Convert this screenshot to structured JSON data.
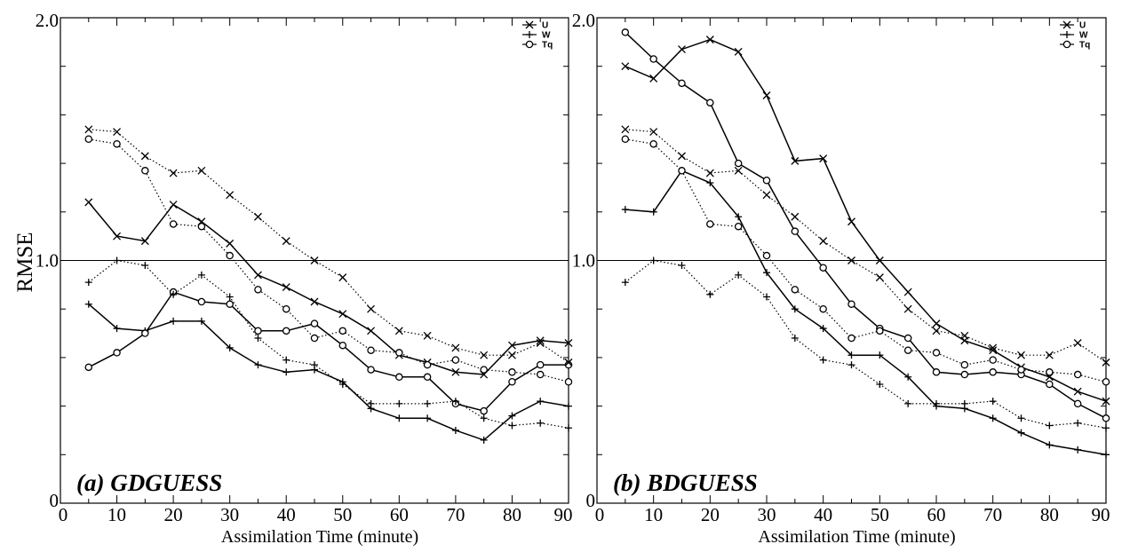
{
  "chart_data": [
    {
      "type": "line",
      "title": "(a) GDGUESS",
      "xlabel": "Assimilation Time (minute)",
      "ylabel": "RMSE",
      "xlim": [
        0,
        90
      ],
      "ylim": [
        0,
        2.0
      ],
      "x_ticks": [
        "0",
        "10",
        "20",
        "30",
        "40",
        "50",
        "60",
        "70",
        "80",
        "90"
      ],
      "y_ticks": [
        "0",
        "1.0",
        "2.0"
      ],
      "reference_line": 1.0,
      "legend": {
        "position": "top-right",
        "entries": [
          "U",
          "W",
          "Tq"
        ]
      },
      "x": [
        5,
        10,
        15,
        20,
        25,
        30,
        35,
        40,
        45,
        50,
        55,
        60,
        65,
        70,
        75,
        80,
        85,
        90
      ],
      "series": [
        {
          "name": "U",
          "style": "solid",
          "marker": "x",
          "values": [
            1.24,
            1.1,
            1.08,
            1.23,
            1.16,
            1.07,
            0.94,
            0.89,
            0.83,
            0.78,
            0.71,
            0.61,
            0.58,
            0.54,
            0.53,
            0.65,
            0.67,
            0.66
          ]
        },
        {
          "name": "W",
          "style": "solid",
          "marker": "+",
          "values": [
            0.82,
            0.72,
            0.71,
            0.75,
            0.75,
            0.64,
            0.57,
            0.54,
            0.55,
            0.5,
            0.39,
            0.35,
            0.35,
            0.3,
            0.26,
            0.36,
            0.42,
            0.4
          ]
        },
        {
          "name": "Tq",
          "style": "solid",
          "marker": "o",
          "values": [
            0.56,
            0.62,
            0.7,
            0.87,
            0.83,
            0.82,
            0.71,
            0.71,
            0.74,
            0.65,
            0.55,
            0.52,
            0.52,
            0.41,
            0.38,
            0.5,
            0.57,
            0.57
          ]
        },
        {
          "name": "",
          "style": "dotted",
          "marker": "x",
          "values": [
            1.54,
            1.53,
            1.43,
            1.36,
            1.37,
            1.27,
            1.18,
            1.08,
            1.0,
            0.93,
            0.8,
            0.71,
            0.69,
            0.64,
            0.61,
            0.61,
            0.66,
            0.58
          ]
        },
        {
          "name": "",
          "style": "dotted",
          "marker": "+",
          "values": [
            0.91,
            1.0,
            0.98,
            0.86,
            0.94,
            0.85,
            0.68,
            0.59,
            0.57,
            0.49,
            0.41,
            0.41,
            0.41,
            0.42,
            0.35,
            0.32,
            0.33,
            0.31
          ]
        },
        {
          "name": "",
          "style": "dotted",
          "marker": "o",
          "values": [
            1.5,
            1.48,
            1.37,
            1.15,
            1.14,
            1.02,
            0.88,
            0.8,
            0.68,
            0.71,
            0.63,
            0.62,
            0.57,
            0.59,
            0.55,
            0.54,
            0.53,
            0.5
          ]
        }
      ]
    },
    {
      "type": "line",
      "title": "(b) BDGUESS",
      "xlabel": "Assimilation Time (minute)",
      "ylabel": "",
      "xlim": [
        0,
        90
      ],
      "ylim": [
        0,
        2.0
      ],
      "x_ticks": [
        "0",
        "10",
        "20",
        "30",
        "40",
        "50",
        "60",
        "70",
        "80",
        "90"
      ],
      "y_ticks": [
        "0",
        "1.0",
        "2.0"
      ],
      "reference_line": 1.0,
      "legend": {
        "position": "top-right",
        "entries": [
          "U",
          "W",
          "Tq"
        ]
      },
      "x": [
        5,
        10,
        15,
        20,
        25,
        30,
        35,
        40,
        45,
        50,
        55,
        60,
        65,
        70,
        75,
        80,
        85,
        90
      ],
      "series": [
        {
          "name": "U",
          "style": "solid",
          "marker": "x",
          "values": [
            1.8,
            1.75,
            1.87,
            1.91,
            1.86,
            1.68,
            1.41,
            1.42,
            1.16,
            1.0,
            0.87,
            0.74,
            0.67,
            0.63,
            0.56,
            0.52,
            0.46,
            0.42
          ]
        },
        {
          "name": "W",
          "style": "solid",
          "marker": "+",
          "values": [
            1.21,
            1.2,
            1.37,
            1.32,
            1.18,
            0.95,
            0.8,
            0.72,
            0.61,
            0.61,
            0.52,
            0.4,
            0.39,
            0.35,
            0.29,
            0.24,
            0.22,
            0.2
          ]
        },
        {
          "name": "Tq",
          "style": "solid",
          "marker": "o",
          "values": [
            1.94,
            1.83,
            1.73,
            1.65,
            1.4,
            1.33,
            1.12,
            0.97,
            0.82,
            0.72,
            0.68,
            0.54,
            0.53,
            0.54,
            0.53,
            0.49,
            0.41,
            0.35
          ]
        },
        {
          "name": "",
          "style": "dotted",
          "marker": "x",
          "values": [
            1.54,
            1.53,
            1.43,
            1.36,
            1.37,
            1.27,
            1.18,
            1.08,
            1.0,
            0.93,
            0.8,
            0.71,
            0.69,
            0.64,
            0.61,
            0.61,
            0.66,
            0.58
          ]
        },
        {
          "name": "",
          "style": "dotted",
          "marker": "+",
          "values": [
            0.91,
            1.0,
            0.98,
            0.86,
            0.94,
            0.85,
            0.68,
            0.59,
            0.57,
            0.49,
            0.41,
            0.41,
            0.41,
            0.42,
            0.35,
            0.32,
            0.33,
            0.31
          ]
        },
        {
          "name": "",
          "style": "dotted",
          "marker": "o",
          "values": [
            1.5,
            1.48,
            1.37,
            1.15,
            1.14,
            1.02,
            0.88,
            0.8,
            0.68,
            0.71,
            0.63,
            0.62,
            0.57,
            0.59,
            0.55,
            0.54,
            0.53,
            0.5
          ]
        }
      ]
    }
  ]
}
